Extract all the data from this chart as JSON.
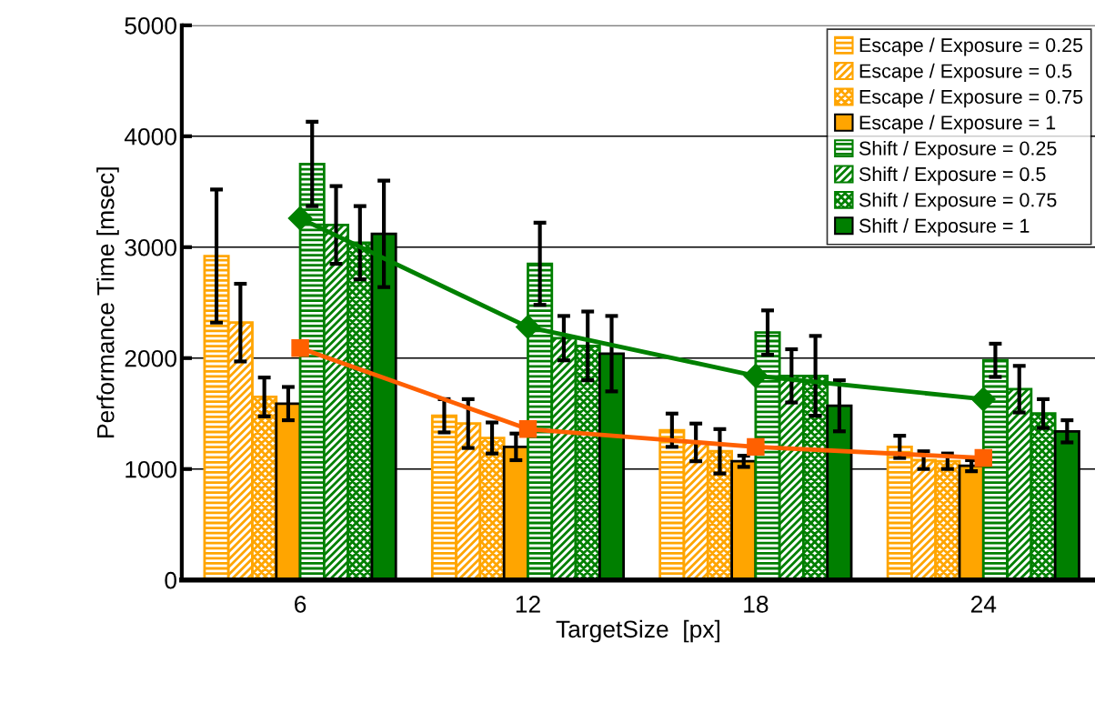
{
  "chart_data": {
    "type": "bar",
    "xlabel": "TargetSize  [px]",
    "ylabel": "Performance Time [msec]",
    "categories": [
      "6",
      "12",
      "18",
      "24"
    ],
    "ylim": [
      0,
      5000
    ],
    "yticks": [
      0,
      1000,
      2000,
      3000,
      4000,
      5000
    ],
    "grid": "y",
    "legend": "top right",
    "series": [
      {
        "name": "Escape / Exposure = 0.25",
        "color": "#ffa500",
        "values": [
          2920,
          1480,
          1350,
          1200
        ],
        "errors": [
          600,
          150,
          150,
          100
        ]
      },
      {
        "name": "Escape / Exposure = 0.5",
        "color": "#ffa500",
        "values": [
          2320,
          1410,
          1240,
          1080
        ],
        "errors": [
          350,
          220,
          170,
          80
        ]
      },
      {
        "name": "Escape / Exposure = 0.75",
        "color": "#ffa500",
        "values": [
          1650,
          1280,
          1160,
          1070
        ],
        "errors": [
          175,
          140,
          200,
          70
        ]
      },
      {
        "name": "Escape / Exposure = 1",
        "color": "#ffa500",
        "values": [
          1590,
          1200,
          1070,
          1030
        ],
        "errors": [
          150,
          120,
          50,
          50
        ]
      },
      {
        "name": "Shift / Exposure = 0.25",
        "color": "#007f00",
        "values": [
          3750,
          2850,
          2230,
          1980
        ],
        "errors": [
          380,
          370,
          200,
          150
        ]
      },
      {
        "name": "Shift / Exposure = 0.5",
        "color": "#007f00",
        "values": [
          3200,
          2180,
          1840,
          1720
        ],
        "errors": [
          350,
          200,
          240,
          210
        ]
      },
      {
        "name": "Shift / Exposure = 0.75",
        "color": "#007f00",
        "values": [
          3040,
          2110,
          1840,
          1500
        ],
        "errors": [
          330,
          310,
          360,
          130
        ]
      },
      {
        "name": "Shift / Exposure = 1",
        "color": "#007f00",
        "values": [
          3120,
          2040,
          1570,
          1340
        ],
        "errors": [
          480,
          340,
          230,
          100
        ]
      },
      {
        "type": "line",
        "color": "#ff6000",
        "marker": "square",
        "values": [
          2090,
          1360,
          1200,
          1100
        ]
      },
      {
        "type": "line",
        "color": "#008000",
        "marker": "diamond",
        "values": [
          3260,
          2280,
          1840,
          1630
        ]
      }
    ]
  }
}
